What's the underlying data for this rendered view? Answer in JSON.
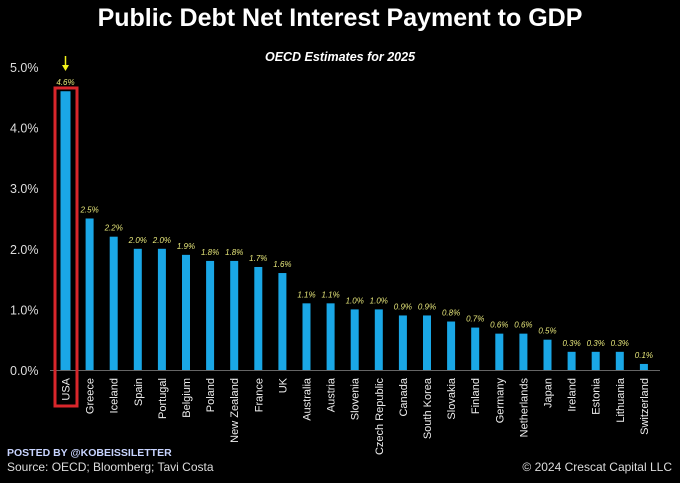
{
  "chart_data": {
    "type": "bar",
    "title": "Public Debt Net Interest Payment to GDP",
    "subtitle": "OECD Estimates for 2025",
    "categories": [
      "USA",
      "Greece",
      "Iceland",
      "Spain",
      "Portugal",
      "Belgium",
      "Poland",
      "New Zealand",
      "France",
      "UK",
      "Australia",
      "Austria",
      "Slovenia",
      "Czech Republic",
      "Canada",
      "South Korea",
      "Slovakia",
      "Finland",
      "Germany",
      "Netherlands",
      "Japan",
      "Ireland",
      "Estonia",
      "Lithuania",
      "Switzerland"
    ],
    "values": [
      4.6,
      2.5,
      2.2,
      2.0,
      2.0,
      1.9,
      1.8,
      1.8,
      1.7,
      1.6,
      1.1,
      1.1,
      1.0,
      1.0,
      0.9,
      0.9,
      0.8,
      0.7,
      0.6,
      0.6,
      0.5,
      0.3,
      0.3,
      0.3,
      0.1
    ],
    "data_labels": [
      "4.6%",
      "2.5%",
      "2.2%",
      "2.0%",
      "2.0%",
      "1.9%",
      "1.8%",
      "1.8%",
      "1.7%",
      "1.6%",
      "1.1%",
      "1.1%",
      "1.0%",
      "1.0%",
      "0.9%",
      "0.9%",
      "0.8%",
      "0.7%",
      "0.6%",
      "0.6%",
      "0.5%",
      "0.3%",
      "0.3%",
      "0.3%",
      "0.1%"
    ],
    "yticks": [
      "0.0%",
      "1.0%",
      "2.0%",
      "3.0%",
      "4.0%",
      "5.0%"
    ],
    "ylim": [
      0,
      5
    ],
    "grid": false,
    "highlighted": "USA",
    "colors": {
      "bar": "#1aa7e6",
      "highlight_box": "#d9262b",
      "label": "#e6e67a",
      "arrow": "#f2f21a",
      "background": "#000000"
    }
  },
  "footer": {
    "posted_by": "POSTED BY @KOBEISSILETTER",
    "source": "Source: OECD; Bloomberg; Tavi Costa",
    "copyright": "© 2024 Crescat Capital LLC"
  }
}
